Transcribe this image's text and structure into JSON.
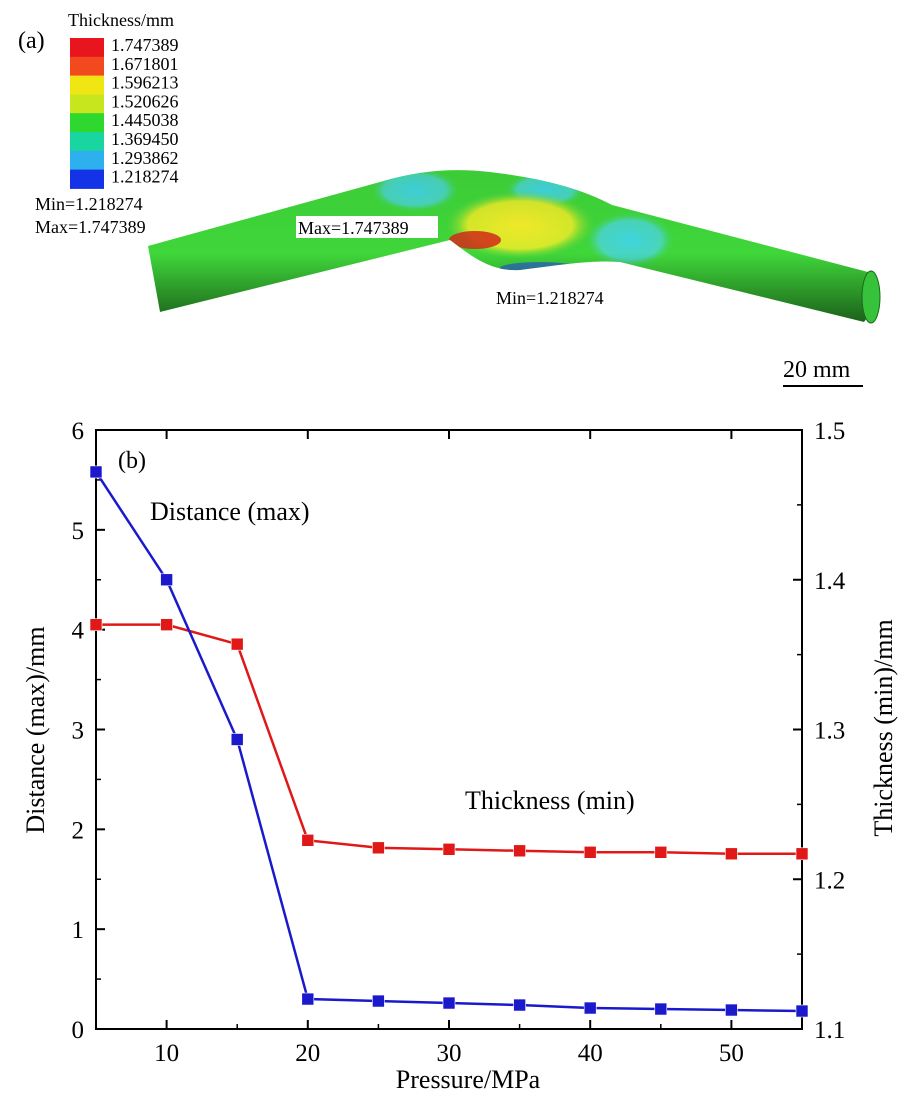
{
  "panel_a": {
    "label": "(a)",
    "legend": {
      "title": "Thickness/mm",
      "values": [
        "1.747389",
        "1.671801",
        "1.596213",
        "1.520626",
        "1.445038",
        "1.369450",
        "1.293862",
        "1.218274"
      ],
      "colors": [
        "#e8141e",
        "#f24a1e",
        "#f0e614",
        "#c8e61e",
        "#2ed82e",
        "#19d6a0",
        "#2eb0ef",
        "#1432e6"
      ]
    },
    "min_text": "Min=1.218274",
    "max_text": "Max=1.747389",
    "max_annotation": "Max=1.747389",
    "min_annotation": "Min=1.218274",
    "scale_bar": "20 mm"
  },
  "chart_data": {
    "type": "line",
    "panel_label": "(b)",
    "xlabel": "Pressure/MPa",
    "ylabel_left": "Distance (max)/mm",
    "ylabel_right": "Thickness (min)/mm",
    "xlim": [
      5,
      55
    ],
    "ylim_left": [
      0,
      6
    ],
    "ylim_right": [
      1.1,
      1.5
    ],
    "x_ticks": [
      "10",
      "20",
      "30",
      "40",
      "50"
    ],
    "y_left_ticks": [
      "0",
      "1",
      "2",
      "3",
      "4",
      "5",
      "6"
    ],
    "y_right_ticks": [
      "1.1",
      "1.2",
      "1.3",
      "1.4",
      "1.5"
    ],
    "x": [
      5,
      10,
      15,
      20,
      25,
      30,
      35,
      40,
      45,
      50,
      55
    ],
    "series": [
      {
        "name": "Distance (max)",
        "axis": "left",
        "color": "#1a1acc",
        "values": [
          5.58,
          4.5,
          2.9,
          0.3,
          0.28,
          0.26,
          0.24,
          0.21,
          0.2,
          0.19,
          0.18
        ]
      },
      {
        "name": "Thickness (min)",
        "axis": "right",
        "color": "#e01818",
        "values": [
          1.37,
          1.37,
          1.357,
          1.226,
          1.221,
          1.22,
          1.219,
          1.218,
          1.218,
          1.217,
          1.217
        ]
      }
    ]
  }
}
